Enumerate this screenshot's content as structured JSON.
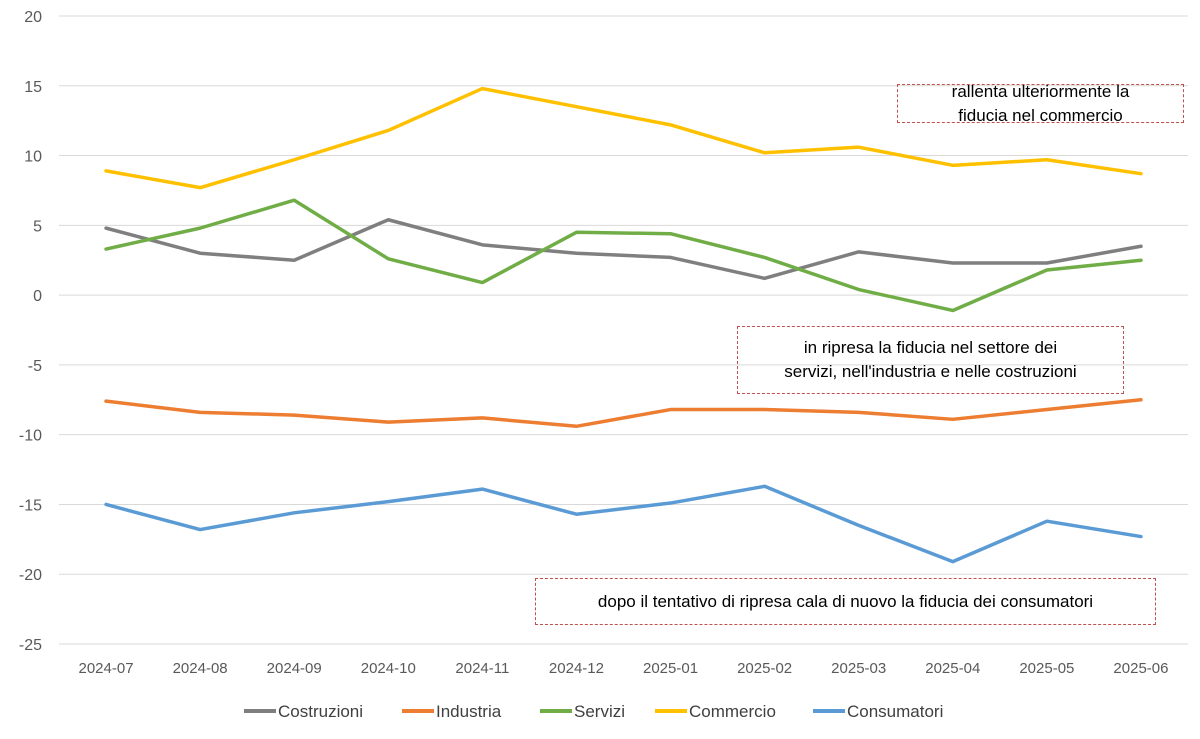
{
  "chart_data": {
    "type": "line",
    "title": "",
    "xlabel": "",
    "ylabel": "",
    "ylim": [
      -25,
      20
    ],
    "yticks": [
      20,
      15,
      10,
      5,
      0,
      -5,
      -10,
      -15,
      -20,
      -25
    ],
    "grid": true,
    "legend_position": "bottom",
    "categories": [
      "2024-07",
      "2024-08",
      "2024-09",
      "2024-10",
      "2024-11",
      "2024-12",
      "2025-01",
      "2025-02",
      "2025-03",
      "2025-04",
      "2025-05",
      "2025-06"
    ],
    "series": [
      {
        "name": "Costruzioni",
        "color": "#7f7f7f",
        "values": [
          4.8,
          3.0,
          2.5,
          5.4,
          3.6,
          3.0,
          2.7,
          1.2,
          3.1,
          2.3,
          2.3,
          3.5
        ]
      },
      {
        "name": "Industria",
        "color": "#ed7d31",
        "values": [
          -7.6,
          -8.4,
          -8.6,
          -9.1,
          -8.8,
          -9.4,
          -8.2,
          -8.2,
          -8.4,
          -8.9,
          -8.2,
          -7.5
        ]
      },
      {
        "name": "Servizi",
        "color": "#70ad47",
        "values": [
          3.3,
          4.8,
          6.8,
          2.6,
          0.9,
          4.5,
          4.4,
          2.7,
          0.4,
          -1.1,
          1.8,
          2.5
        ]
      },
      {
        "name": "Commercio",
        "color": "#ffc000",
        "values": [
          8.9,
          7.7,
          9.7,
          11.8,
          14.8,
          13.5,
          12.2,
          10.2,
          10.6,
          9.3,
          9.7,
          8.7
        ]
      },
      {
        "name": "Consumatori",
        "color": "#5b9bd5",
        "values": [
          -15.0,
          -16.8,
          -15.6,
          -14.8,
          -13.9,
          -15.7,
          -14.9,
          -13.7,
          -16.5,
          -19.1,
          -16.2,
          -17.3
        ]
      }
    ],
    "annotations": [
      {
        "lines": [
          "rallenta ulteriormente la",
          "fiducia nel commercio"
        ]
      },
      {
        "lines": [
          "in ripresa la fiducia nel settore dei",
          "servizi, nell'industria e nelle costruzioni"
        ]
      },
      {
        "lines": [
          "dopo il tentativo di ripresa cala di nuovo la fiducia dei consumatori"
        ]
      }
    ]
  }
}
